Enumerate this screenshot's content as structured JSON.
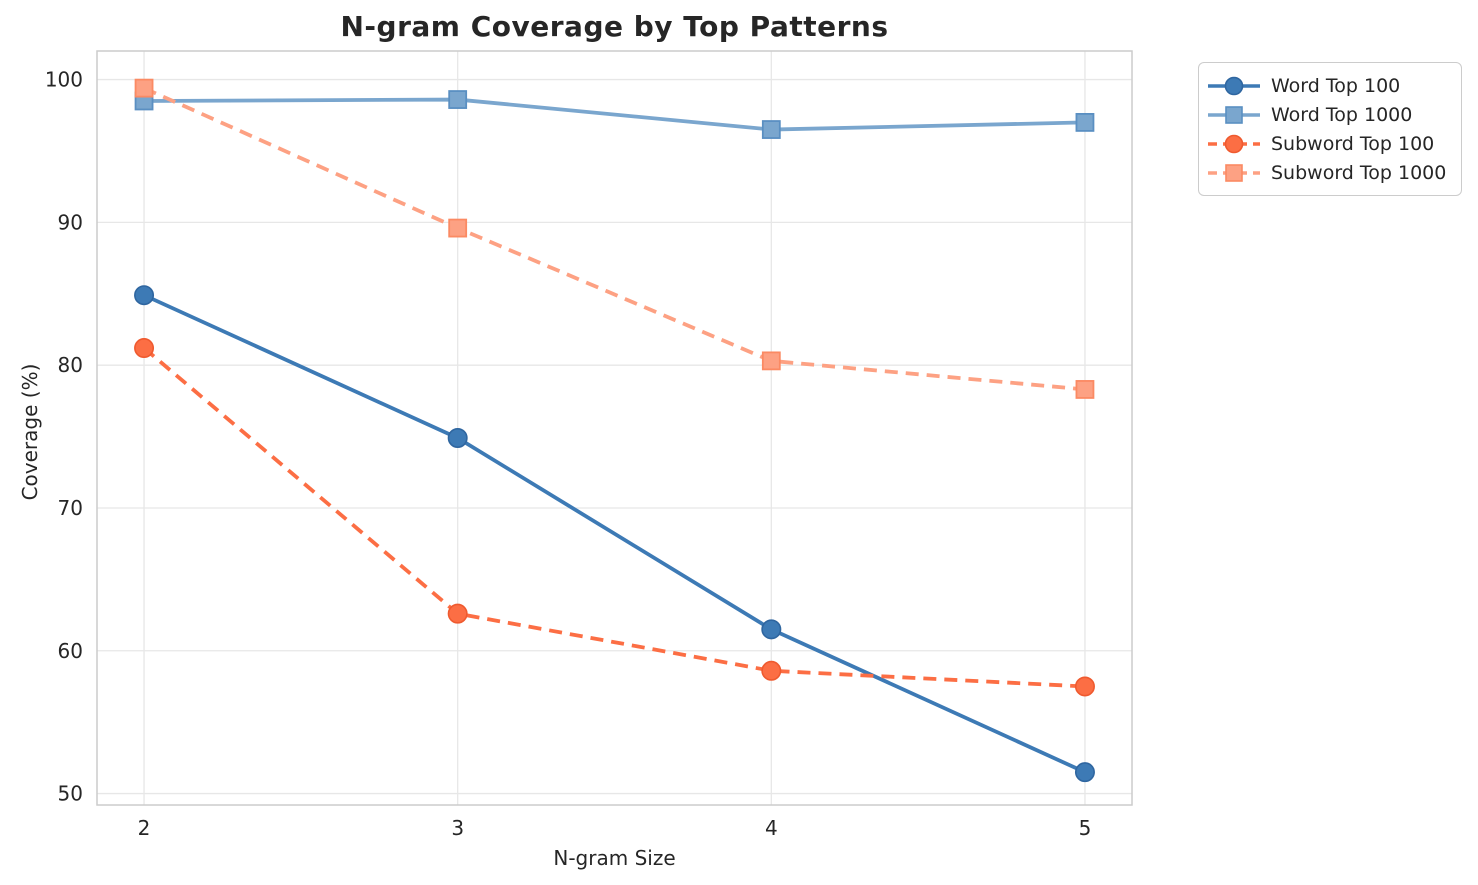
{
  "figure": {
    "background": "#ffffff",
    "grid_color": "#e7e7e7",
    "spine_color": "#cccccc",
    "text_color": "#262626"
  },
  "chart_data": {
    "type": "line",
    "title": "N-gram Coverage by Top Patterns",
    "xlabel": "N-gram Size",
    "ylabel": "Coverage (%)",
    "x": [
      2,
      3,
      4,
      5
    ],
    "xtick_labels": [
      "2",
      "3",
      "4",
      "5"
    ],
    "yticks": [
      50,
      60,
      70,
      80,
      90,
      100
    ],
    "ytick_labels": [
      "50",
      "60",
      "70",
      "80",
      "90",
      "100"
    ],
    "xlim": [
      1.85,
      5.15
    ],
    "ylim": [
      49.2,
      102.0
    ],
    "grid": true,
    "legend_position": "outside upper right",
    "series": [
      {
        "name": "Word Top 100",
        "values": [
          84.9,
          74.9,
          61.5,
          51.5
        ],
        "color": "#3d7ab5",
        "edge_color": "#2f66a0",
        "marker": "circle",
        "line_style": "solid"
      },
      {
        "name": "Word Top 1000",
        "values": [
          98.5,
          98.6,
          96.5,
          97.0
        ],
        "color": "#7aa6ce",
        "edge_color": "#5a8fc2",
        "marker": "square",
        "line_style": "solid"
      },
      {
        "name": "Subword Top 100",
        "values": [
          81.2,
          62.6,
          58.6,
          57.5
        ],
        "color": "#fc6e44",
        "edge_color": "#ef5a2f",
        "marker": "circle",
        "line_style": "dashed"
      },
      {
        "name": "Subword Top 1000",
        "values": [
          99.4,
          89.6,
          80.3,
          78.3
        ],
        "color": "#fda183",
        "edge_color": "#fb8a63",
        "marker": "square",
        "line_style": "dashed"
      }
    ]
  }
}
